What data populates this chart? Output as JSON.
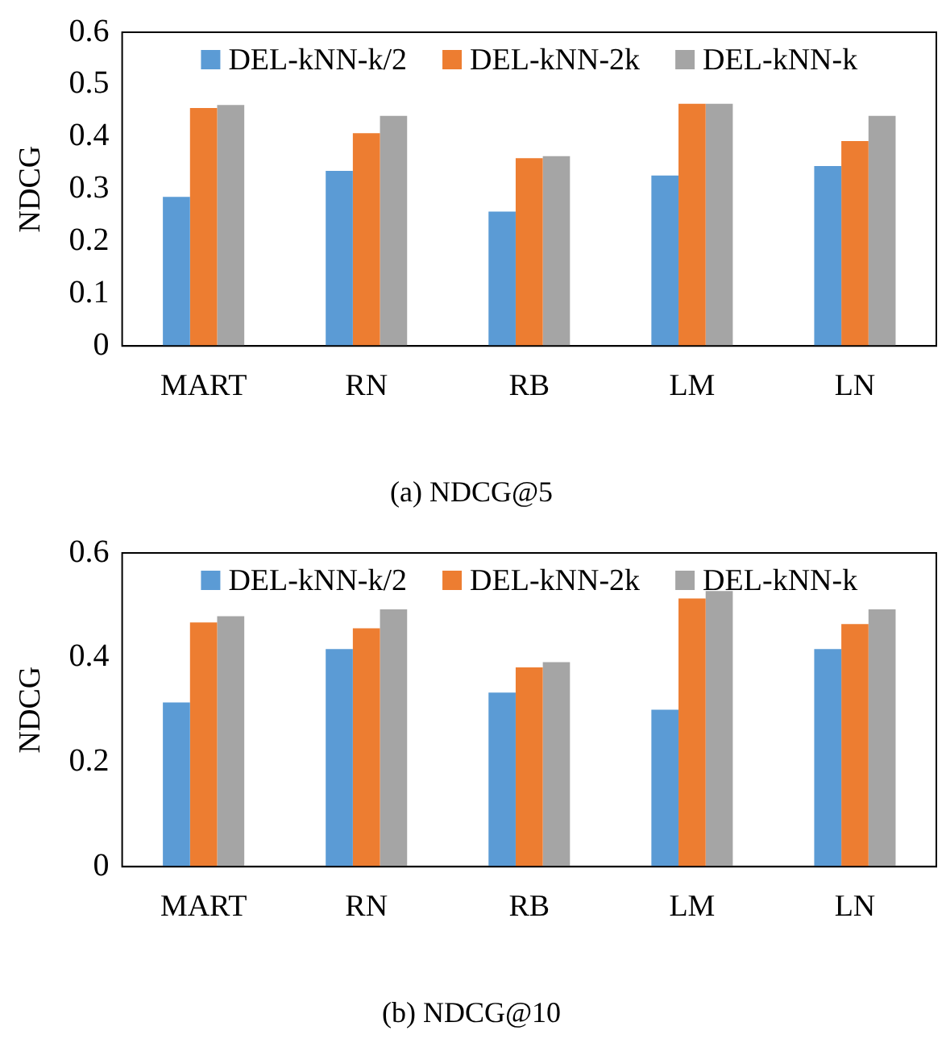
{
  "chart_data": [
    {
      "type": "bar",
      "title": "(a) NDCG@5",
      "ylabel": "NDCG",
      "categories": [
        "MART",
        "RN",
        "RB",
        "LM",
        "LN"
      ],
      "series": [
        {
          "name": "DEL-kNN-k/2",
          "color": "#5b9bd5",
          "values": [
            0.285,
            0.335,
            0.257,
            0.326,
            0.344
          ]
        },
        {
          "name": "DEL-kNN-2k",
          "color": "#ed7d31",
          "values": [
            0.455,
            0.407,
            0.359,
            0.463,
            0.392
          ]
        },
        {
          "name": "DEL-kNN-k",
          "color": "#a5a5a5",
          "values": [
            0.461,
            0.44,
            0.363,
            0.463,
            0.44
          ]
        }
      ],
      "ylim": [
        0,
        0.6
      ],
      "yticks": [
        0,
        0.1,
        0.2,
        0.3,
        0.4,
        0.5,
        0.6
      ],
      "grid": false,
      "legend": "top"
    },
    {
      "type": "bar",
      "title": "(b) NDCG@10",
      "ylabel": "NDCG",
      "categories": [
        "MART",
        "RN",
        "RB",
        "LM",
        "LN"
      ],
      "series": [
        {
          "name": "DEL-kNN-k/2",
          "color": "#5b9bd5",
          "values": [
            0.314,
            0.416,
            0.333,
            0.3,
            0.416
          ]
        },
        {
          "name": "DEL-kNN-2k",
          "color": "#ed7d31",
          "values": [
            0.467,
            0.456,
            0.381,
            0.513,
            0.464
          ]
        },
        {
          "name": "DEL-kNN-k",
          "color": "#a5a5a5",
          "values": [
            0.479,
            0.492,
            0.391,
            0.527,
            0.492
          ]
        }
      ],
      "ylim": [
        0,
        0.6
      ],
      "yticks": [
        0,
        0.2,
        0.4,
        0.6
      ],
      "grid": false,
      "legend": "top"
    }
  ]
}
